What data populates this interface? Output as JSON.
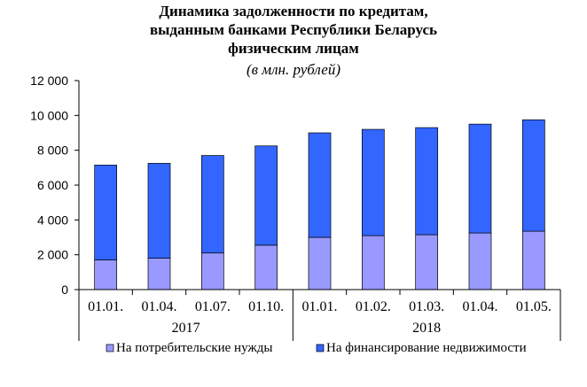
{
  "chart_data": {
    "type": "bar",
    "stacked": true,
    "title_lines": [
      "Динамика задолженности по кредитам,",
      "выданным банками Республики Беларусь",
      "физическим лицам"
    ],
    "subtitle": "(в млн. рублей)",
    "categories": [
      "01.01.",
      "01.04.",
      "01.07.",
      "01.10.",
      "01.01.",
      "01.02.",
      "01.03.",
      "01.04.",
      "01.05."
    ],
    "year_groups": [
      {
        "label": "2017",
        "start": 0,
        "end": 3
      },
      {
        "label": "2018",
        "start": 4,
        "end": 8
      }
    ],
    "series": [
      {
        "name": "На потребительские нужды",
        "color": "#9999ff",
        "values": [
          1700,
          1800,
          2100,
          2550,
          3000,
          3100,
          3150,
          3250,
          3350
        ]
      },
      {
        "name": "На финансирование недвижимости",
        "color": "#3366ff",
        "values": [
          5450,
          5450,
          5600,
          5700,
          6000,
          6100,
          6150,
          6250,
          6400
        ]
      }
    ],
    "ylim": [
      0,
      12000
    ],
    "yticks": [
      0,
      2000,
      4000,
      6000,
      8000,
      10000,
      12000
    ],
    "ytick_labels": [
      "0",
      "2 000",
      "4 000",
      "6 000",
      "8 000",
      "10 000",
      "12 000"
    ],
    "grid": false,
    "legend_position": "bottom"
  }
}
